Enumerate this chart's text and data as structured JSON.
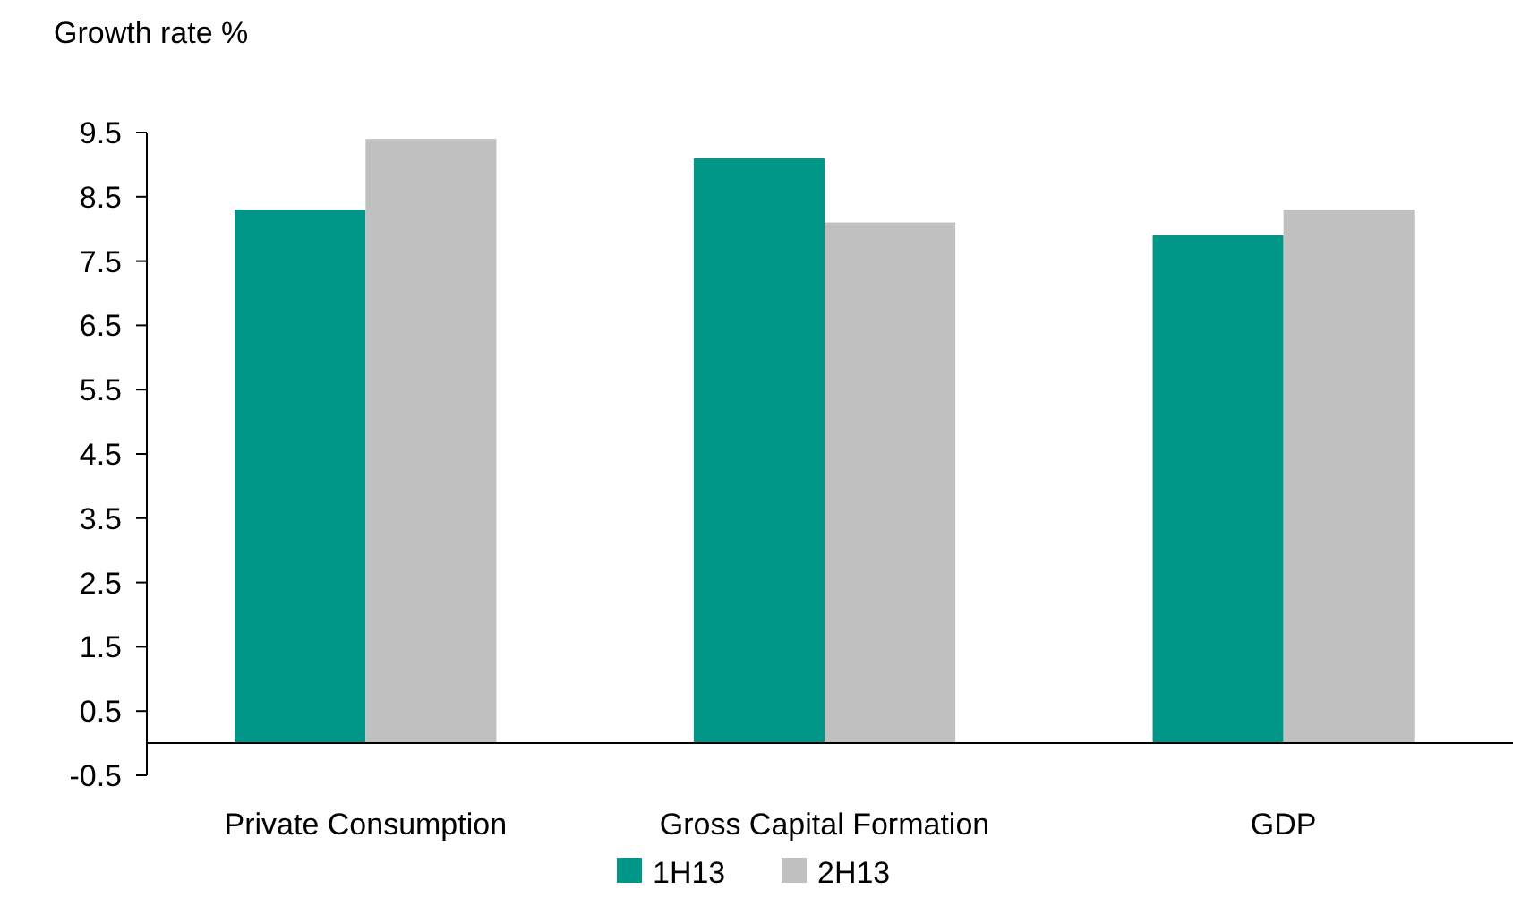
{
  "chart_data": {
    "type": "bar",
    "ylabel": "Growth rate %",
    "categories": [
      "Private Consumption",
      "Gross Capital Formation",
      "GDP"
    ],
    "series": [
      {
        "name": "1H13",
        "color": "#009688",
        "values": [
          8.3,
          9.1,
          7.9
        ]
      },
      {
        "name": "2H13",
        "color": "#c0c0c0",
        "values": [
          9.4,
          8.1,
          8.3
        ]
      }
    ],
    "ylim": [
      -0.5,
      9.5
    ],
    "yticks": [
      -0.5,
      0.5,
      1.5,
      2.5,
      3.5,
      4.5,
      5.5,
      6.5,
      7.5,
      8.5,
      9.5
    ],
    "grid": false,
    "legend": "bottom"
  }
}
